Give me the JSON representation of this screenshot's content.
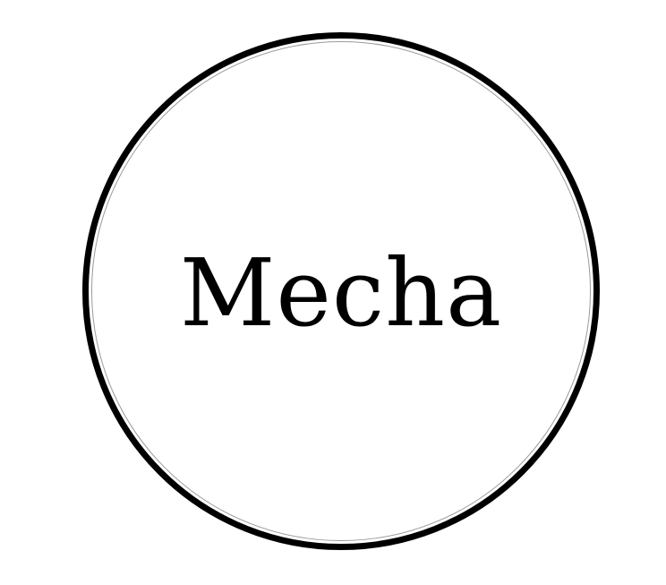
{
  "logo": {
    "text": "Mecha",
    "colors": {
      "ring": "#000000",
      "inner_ring": "#9a9a9a",
      "text": "#000000",
      "background": "#ffffff"
    }
  }
}
